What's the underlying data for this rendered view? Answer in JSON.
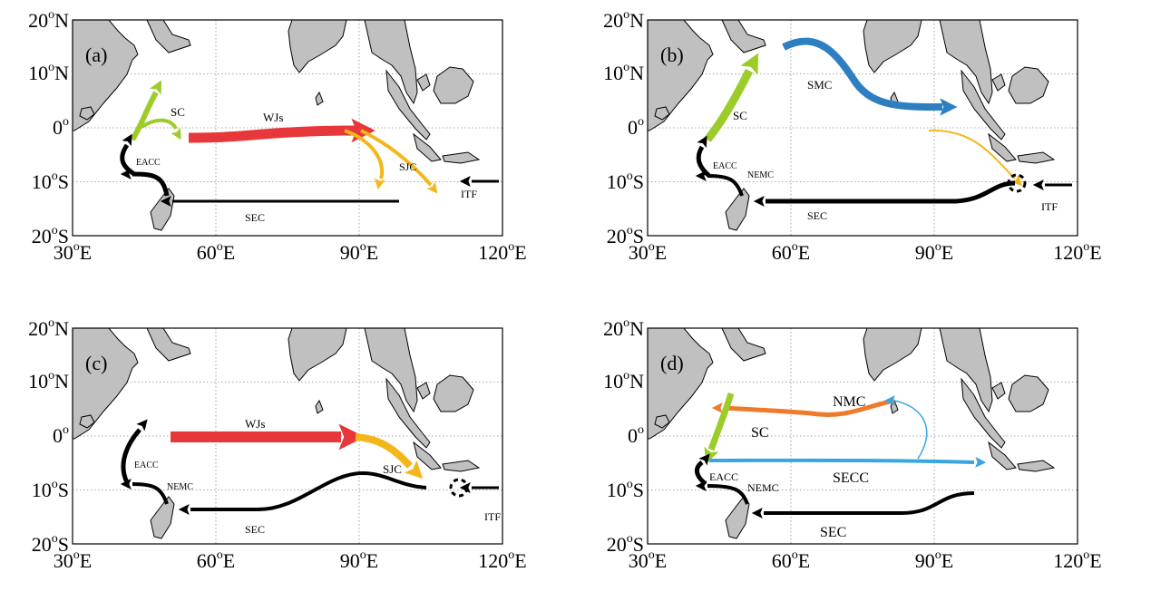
{
  "colors": {
    "land": "#c0c0c0",
    "coast": "#000000",
    "grid": "#8c8c8c",
    "wjs": "#e8373a",
    "sjc": "#f4b71b",
    "sc": "#9ccc2a",
    "smc": "#2d7fc1",
    "black": "#000000",
    "nmc": "#ef7a2a",
    "secc": "#3aa6e0",
    "itf_thin": "#f4b71b"
  },
  "axes": {
    "lat_ticks": [
      {
        "label": "20",
        "sup": "o",
        "hem": "N"
      },
      {
        "label": "10",
        "sup": "o",
        "hem": "N"
      },
      {
        "label": "0",
        "sup": "o",
        "hem": ""
      },
      {
        "label": "10",
        "sup": "o",
        "hem": "S"
      },
      {
        "label": "20",
        "sup": "o",
        "hem": "S"
      }
    ],
    "lon_ticks": [
      {
        "label": "30",
        "sup": "o",
        "hem": "E"
      },
      {
        "label": "60",
        "sup": "o",
        "hem": "E"
      },
      {
        "label": "90",
        "sup": "o",
        "hem": "E"
      },
      {
        "label": "120",
        "sup": "o",
        "hem": "E"
      }
    ]
  },
  "panels": [
    {
      "id": "a",
      "label": "(a)",
      "labels": {
        "sc": "SC",
        "wjs": "WJs",
        "eacc": "EACC",
        "sjc": "SJC",
        "sec": "SEC",
        "itf": "ITF"
      }
    },
    {
      "id": "b",
      "label": "(b)",
      "labels": {
        "smc": "SMC",
        "sc": "SC",
        "eacc": "EACC",
        "nemc": "NEMC",
        "sec": "SEC",
        "itf": "ITF"
      }
    },
    {
      "id": "c",
      "label": "(c)",
      "labels": {
        "wjs": "WJs",
        "eacc": "EACC",
        "nemc": "NEMC",
        "sjc": "SJC",
        "sec": "SEC",
        "itf": "ITF"
      }
    },
    {
      "id": "d",
      "label": "(d)",
      "labels": {
        "nmc": "NMC",
        "sc": "SC",
        "secc": "SECC",
        "eacc": "EACC",
        "nemc": "NEMC",
        "sec": "SEC"
      }
    }
  ]
}
